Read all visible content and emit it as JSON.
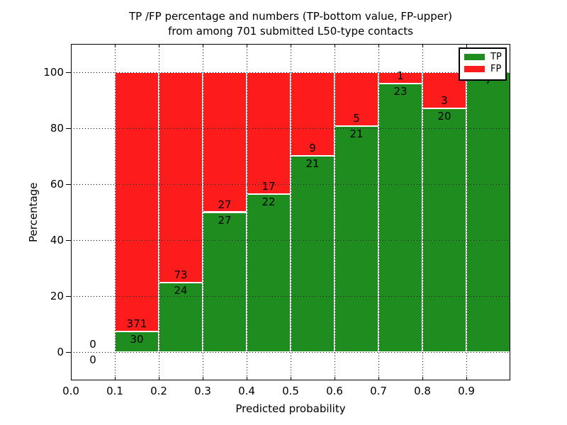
{
  "figure": {
    "title_line1": "TP /FP percentage and numbers (TP-bottom value, FP-upper)",
    "title_line2": "from among 701 submitted L50-type contacts",
    "xlabel": "Predicted probability",
    "ylabel": "Percentage"
  },
  "legend": {
    "position": "upper right",
    "items": [
      {
        "label": "TP",
        "color": "#1e8c1e"
      },
      {
        "label": "FP",
        "color": "#fc1c1c"
      }
    ]
  },
  "chart_data": {
    "type": "bar",
    "stacked": true,
    "normalized_to_percent": true,
    "title": "TP /FP percentage and numbers (TP-bottom value, FP-upper) from among 701 submitted L50-type contacts",
    "xlabel": "Predicted probability",
    "ylabel": "Percentage",
    "xlim": [
      0.0,
      1.0
    ],
    "ylim": [
      -10,
      110
    ],
    "grid": "dotted",
    "legend_position": "upper right",
    "total_contacts": 701,
    "bin_width": 0.1,
    "x_tick_labels": [
      "0.0",
      "0.1",
      "0.2",
      "0.3",
      "0.4",
      "0.5",
      "0.6",
      "0.7",
      "0.8",
      "0.9"
    ],
    "x_tick_values": [
      0.0,
      0.1,
      0.2,
      0.3,
      0.4,
      0.5,
      0.6,
      0.7,
      0.8,
      0.9
    ],
    "y_tick_labels": [
      "0",
      "20",
      "40",
      "60",
      "80",
      "100"
    ],
    "y_tick_values": [
      0,
      20,
      40,
      60,
      80,
      100
    ],
    "series": [
      {
        "name": "TP",
        "color": "#1e8c1e"
      },
      {
        "name": "FP",
        "color": "#fc1c1c"
      }
    ],
    "bins": [
      {
        "x_start": 0.0,
        "x_end": 0.1,
        "tp_count": 0,
        "fp_count": 0
      },
      {
        "x_start": 0.1,
        "x_end": 0.2,
        "tp_count": 30,
        "fp_count": 371
      },
      {
        "x_start": 0.2,
        "x_end": 0.3,
        "tp_count": 24,
        "fp_count": 73
      },
      {
        "x_start": 0.3,
        "x_end": 0.4,
        "tp_count": 27,
        "fp_count": 27
      },
      {
        "x_start": 0.4,
        "x_end": 0.5,
        "tp_count": 22,
        "fp_count": 17
      },
      {
        "x_start": 0.5,
        "x_end": 0.6,
        "tp_count": 21,
        "fp_count": 9
      },
      {
        "x_start": 0.6,
        "x_end": 0.7,
        "tp_count": 21,
        "fp_count": 5
      },
      {
        "x_start": 0.7,
        "x_end": 0.8,
        "tp_count": 23,
        "fp_count": 1
      },
      {
        "x_start": 0.8,
        "x_end": 0.9,
        "tp_count": 20,
        "fp_count": 3
      },
      {
        "x_start": 0.9,
        "x_end": 1.0,
        "tp_count": 7,
        "fp_count": 0
      }
    ]
  }
}
